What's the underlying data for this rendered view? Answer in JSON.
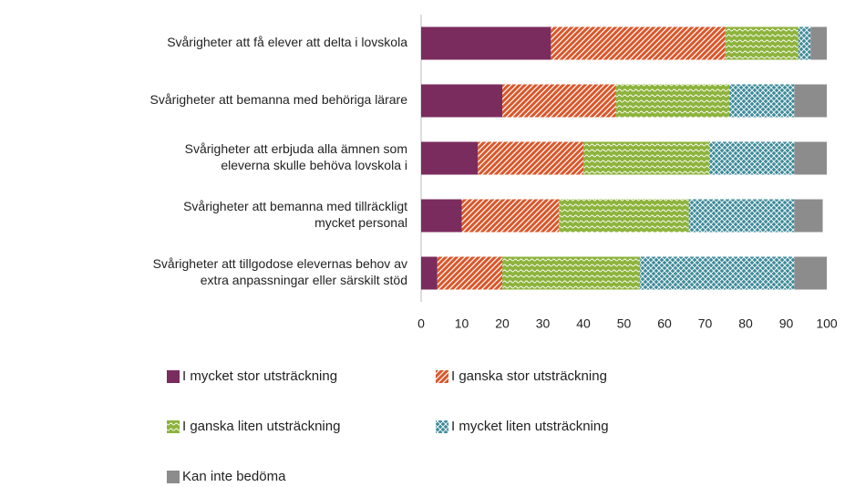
{
  "chart_data": {
    "type": "stacked-bar-horizontal",
    "categories": [
      [
        "Svårigheter att få elever att delta i lovskola"
      ],
      [
        "Svårigheter att bemanna med behöriga lärare"
      ],
      [
        "Svårigheter att erbjuda alla ämnen som",
        "eleverna skulle behöva lovskola i"
      ],
      [
        "Svårigheter att bemanna med tillräckligt",
        "mycket personal"
      ],
      [
        "Svårigheter att tillgodose elevernas behov av",
        "extra anpassningar eller särskilt stöd"
      ]
    ],
    "series": [
      {
        "name": "I mycket stor utsträckning",
        "color": "#7b2c5e",
        "values": [
          32,
          20,
          14,
          10,
          4
        ]
      },
      {
        "name": "I ganska stor utsträckning",
        "color": "#d9572b",
        "values": [
          43,
          28,
          26,
          24,
          16
        ]
      },
      {
        "name": "I ganska liten utsträckning",
        "color": "#8db33c",
        "values": [
          18,
          28,
          31,
          32,
          34
        ]
      },
      {
        "name": "I mycket liten utsträckning",
        "color": "#3d8a9a",
        "values": [
          3,
          16,
          21,
          26,
          38
        ]
      },
      {
        "name": "Kan inte bedöma",
        "color": "#8c8c8c",
        "values": [
          4,
          8,
          8,
          7,
          8
        ]
      }
    ],
    "xlim": [
      0,
      100
    ],
    "xticks": [
      0,
      10,
      20,
      30,
      40,
      50,
      60,
      70,
      80,
      90,
      100
    ]
  }
}
